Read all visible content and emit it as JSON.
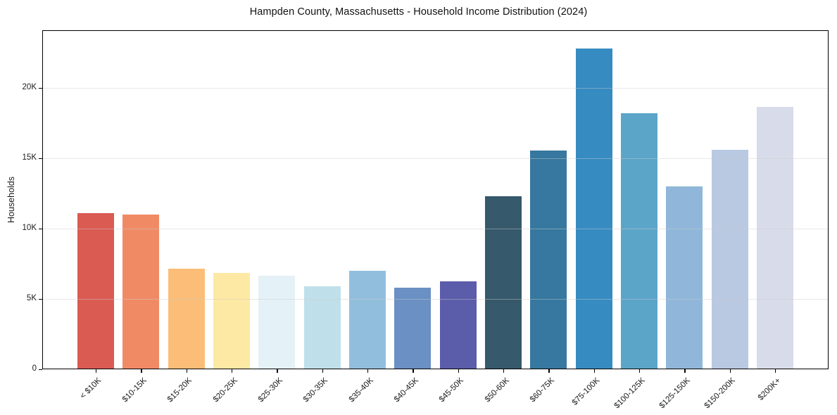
{
  "title": "Hampden County, Massachusetts - Household Income Distribution (2024)",
  "y_axis_title": "Households",
  "chart_data": {
    "type": "bar",
    "title": "Hampden County, Massachusetts - Household Income Distribution (2024)",
    "xlabel": "",
    "ylabel": "Households",
    "categories": [
      "< $10K",
      "$10-15K",
      "$15-20K",
      "$20-25K",
      "$25-30K",
      "$30-35K",
      "$35-40K",
      "$40-45K",
      "$45-50K",
      "$50-60K",
      "$60-75K",
      "$75-100K",
      "$100-125K",
      "$125-150K",
      "$150-200K",
      "$200K+"
    ],
    "values": [
      11100,
      11000,
      7150,
      6850,
      6650,
      5900,
      7000,
      5800,
      6250,
      12300,
      15550,
      22800,
      18200,
      13000,
      15600,
      18650
    ],
    "bar_colors": [
      "#d95b52",
      "#f08a65",
      "#fbbd77",
      "#fde9a3",
      "#e4f1f6",
      "#bfe0ea",
      "#92bedd",
      "#6a90c4",
      "#5b5caa",
      "#36596b",
      "#36789f",
      "#368bc1",
      "#5ba5c9",
      "#90b7d9",
      "#b9c9e2",
      "#d8dbe9"
    ],
    "ylim": [
      0,
      24100
    ],
    "yticks": [
      {
        "value": 0,
        "label": "0"
      },
      {
        "value": 5000,
        "label": "5K"
      },
      {
        "value": 10000,
        "label": "10K"
      },
      {
        "value": 15000,
        "label": "15K"
      },
      {
        "value": 20000,
        "label": "20K"
      }
    ],
    "grid": "horizontal",
    "grid_color": "#e8e8e8",
    "spine_color": "#000000",
    "background": "#ffffff",
    "legend": "none",
    "x_label_rotation_deg": 45
  }
}
